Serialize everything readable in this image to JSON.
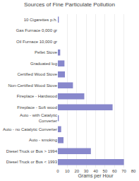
{
  "chart_data": {
    "type": "bar",
    "orientation": "horizontal",
    "title": "Sources of Fine Particulate Pollution",
    "xlabel": "Grams per Hour",
    "categories": [
      "10 Cigarettes p.h.",
      "Gas Furnace 0,000 gr",
      "Oil Furnace 10,000 gr",
      "Pellet Stove",
      "Graduated log",
      "Certified Wood Stove",
      "Non-Certified Wood Stove",
      "Fireplace - Hardwood",
      "Fireplace - Soft wood",
      "Auto - with Catalytic\nConverter",
      "Auto - no Catalytic Converter",
      "Auto - smoking",
      "Diesel Truck or Bus > 1994",
      "Diesel Truck or Bus < 1993"
    ],
    "values": [
      1.0,
      0.0,
      0.0,
      2.5,
      7.0,
      7.5,
      16.0,
      28.0,
      58.0,
      1.0,
      3.5,
      6.0,
      35.0,
      70.0
    ],
    "color": "#8888cc",
    "xlim": [
      0,
      80
    ],
    "xticks": [
      0,
      10,
      20,
      30,
      40,
      50,
      60,
      70,
      80
    ],
    "grid": true
  }
}
